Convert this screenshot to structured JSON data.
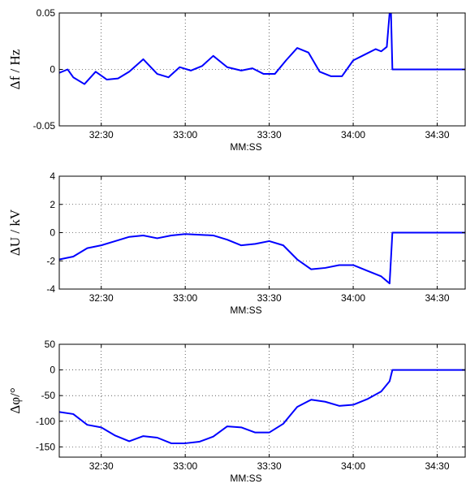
{
  "chart_data": [
    {
      "type": "line",
      "title": "",
      "xlabel": "MM:SS",
      "ylabel": "Δf / Hz",
      "xlim": [
        "32:15",
        "34:40"
      ],
      "ylim": [
        -0.05,
        0.05
      ],
      "xticks": [
        "32:30",
        "33:00",
        "33:30",
        "34:00",
        "34:30"
      ],
      "yticks": [
        "-0.05",
        "0",
        "0.05"
      ],
      "grid": true,
      "line_color": "#0000ff",
      "series": [
        {
          "x": [
            "32:15",
            "32:18",
            "32:20",
            "32:24",
            "32:28",
            "32:32",
            "32:36",
            "32:40",
            "32:45",
            "32:50",
            "32:54",
            "32:58",
            "33:02",
            "33:06",
            "33:10",
            "33:15",
            "33:20",
            "33:24",
            "33:28",
            "33:32",
            "33:36",
            "33:40",
            "33:44",
            "33:48",
            "33:52",
            "33:56",
            "34:00",
            "34:04",
            "34:08",
            "34:10",
            "34:12",
            "34:13",
            "34:13.5",
            "34:14",
            "34:20",
            "34:30",
            "34:40"
          ],
          "y": [
            -0.003,
            0.0,
            -0.007,
            -0.013,
            -0.002,
            -0.009,
            -0.008,
            -0.002,
            0.009,
            -0.004,
            -0.007,
            0.002,
            -0.001,
            0.003,
            0.012,
            0.002,
            -0.001,
            0.001,
            -0.004,
            -0.004,
            0.008,
            0.019,
            0.015,
            -0.002,
            -0.006,
            -0.006,
            0.008,
            0.013,
            0.018,
            0.016,
            0.02,
            0.05,
            0.05,
            0.0,
            0.0,
            0.0,
            0.0
          ]
        }
      ]
    },
    {
      "type": "line",
      "title": "",
      "xlabel": "MM:SS",
      "ylabel": "ΔU / kV",
      "xlim": [
        "32:15",
        "34:40"
      ],
      "ylim": [
        -4,
        4
      ],
      "xticks": [
        "32:30",
        "33:00",
        "33:30",
        "34:00",
        "34:30"
      ],
      "yticks": [
        "-4",
        "-2",
        "0",
        "2",
        "4"
      ],
      "grid": true,
      "line_color": "#0000ff",
      "series": [
        {
          "x": [
            "32:15",
            "32:20",
            "32:25",
            "32:30",
            "32:35",
            "32:40",
            "32:45",
            "32:50",
            "32:55",
            "33:00",
            "33:05",
            "33:10",
            "33:15",
            "33:20",
            "33:25",
            "33:30",
            "33:35",
            "33:40",
            "33:45",
            "33:50",
            "33:55",
            "34:00",
            "34:05",
            "34:10",
            "34:13",
            "34:14",
            "34:20",
            "34:30",
            "34:40"
          ],
          "y": [
            -1.9,
            -1.7,
            -1.1,
            -0.9,
            -0.6,
            -0.3,
            -0.2,
            -0.4,
            -0.2,
            -0.1,
            -0.15,
            -0.2,
            -0.5,
            -0.9,
            -0.8,
            -0.6,
            -0.9,
            -1.9,
            -2.6,
            -2.5,
            -2.3,
            -2.3,
            -2.7,
            -3.1,
            -3.6,
            0.0,
            0.0,
            0.0,
            0.0
          ]
        }
      ]
    },
    {
      "type": "line",
      "title": "",
      "xlabel": "MM:SS",
      "ylabel": "Δφ/°",
      "xlim": [
        "32:15",
        "34:40"
      ],
      "ylim": [
        -170,
        50
      ],
      "xticks": [
        "32:30",
        "33:00",
        "33:30",
        "34:00",
        "34:30"
      ],
      "yticks": [
        "-150",
        "-100",
        "-50",
        "0",
        "50"
      ],
      "grid": true,
      "line_color": "#0000ff",
      "series": [
        {
          "x": [
            "32:15",
            "32:20",
            "32:25",
            "32:30",
            "32:35",
            "32:40",
            "32:45",
            "32:50",
            "32:55",
            "33:00",
            "33:05",
            "33:10",
            "33:15",
            "33:20",
            "33:25",
            "33:30",
            "33:35",
            "33:40",
            "33:45",
            "33:50",
            "33:55",
            "34:00",
            "34:05",
            "34:10",
            "34:13",
            "34:14",
            "34:20",
            "34:30",
            "34:40"
          ],
          "y": [
            -82,
            -86,
            -107,
            -112,
            -128,
            -139,
            -129,
            -132,
            -143,
            -143,
            -140,
            -130,
            -110,
            -112,
            -122,
            -122,
            -105,
            -72,
            -58,
            -62,
            -70,
            -68,
            -57,
            -42,
            -22,
            0,
            0,
            0,
            0
          ]
        }
      ]
    }
  ]
}
